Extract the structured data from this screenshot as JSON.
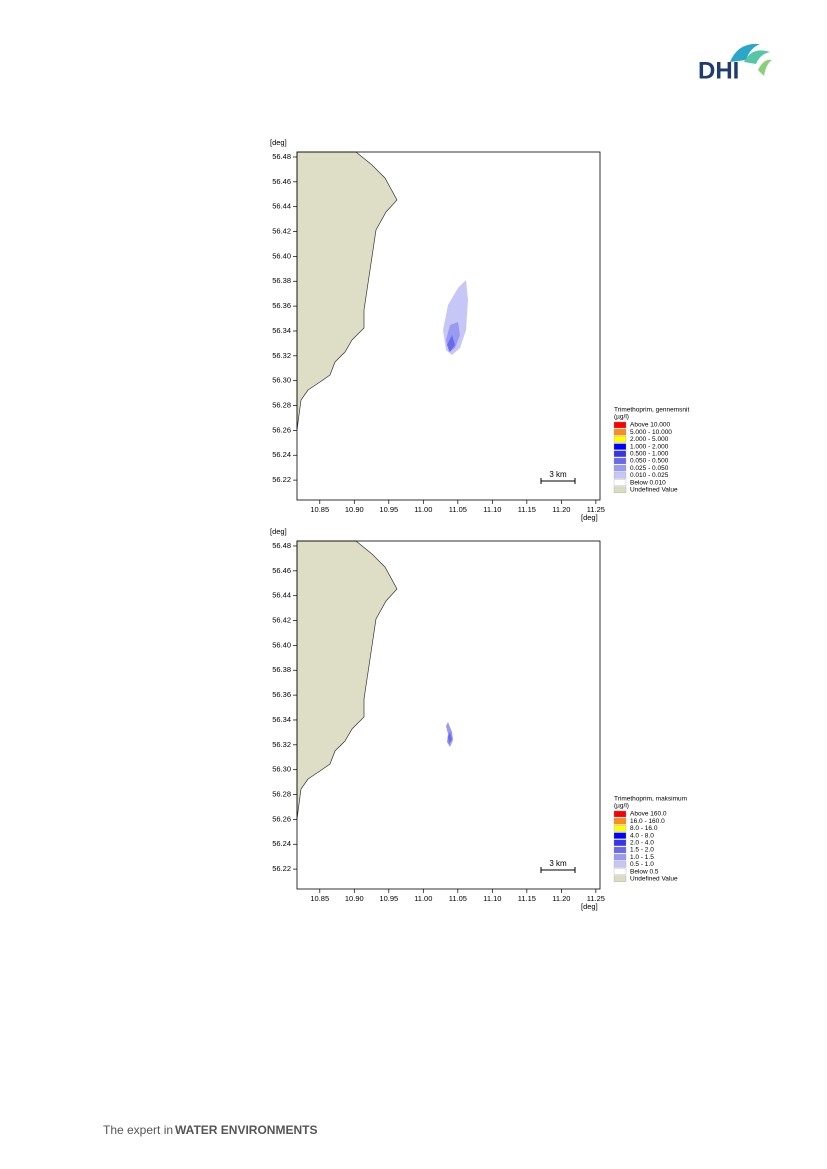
{
  "header": {
    "logo": "DHI"
  },
  "maps": [
    {
      "yaxis_unit": "[deg]",
      "xaxis_unit": "[deg]",
      "xlim": [
        10.817,
        11.256
      ],
      "ylim": [
        56.204,
        56.484
      ],
      "xticks": [
        10.85,
        {
          "value": 10.9,
          "label": "10.90"
        },
        10.95,
        {
          "value": 11,
          "label": "11.00"
        },
        11.05,
        {
          "value": 11.1,
          "label": "11.10"
        },
        11.15,
        {
          "value": 11.2,
          "label": "11.20"
        },
        11.25
      ],
      "yticks": [
        56.48,
        56.46,
        56.44,
        56.42,
        {
          "value": 56.4,
          "label": "56.40"
        },
        56.38,
        56.36,
        56.34,
        56.32,
        {
          "value": 56.3,
          "label": "56.30"
        },
        56.28,
        56.26,
        56.24,
        56.22
      ],
      "scale_bar": "3 km",
      "legend": {
        "title": "Trimethoprim, gennemsnit",
        "unit": "(µg/l)",
        "items": [
          {
            "label": "Above 10.000",
            "color": "#ff0000"
          },
          {
            "label": "5.000 - 10.000",
            "color": "#ff8c1a"
          },
          {
            "label": "2.000 - 5.000",
            "color": "#ffff00"
          },
          {
            "label": "1.000 - 2.000",
            "color": "#0000ff"
          },
          {
            "label": "0.500 - 1.000",
            "color": "#3535ee"
          },
          {
            "label": "0.050 - 0.500",
            "color": "#6a6aee"
          },
          {
            "label": "0.025 - 0.050",
            "color": "#9a9af2"
          },
          {
            "label": "0.010 - 0.025",
            "color": "#c6c6f7"
          },
          {
            "label": "Below 0.010",
            "color": "#ffffff"
          },
          {
            "label": "Undefined Value",
            "color": "#dcdcc2"
          }
        ]
      }
    },
    {
      "yaxis_unit": "[deg]",
      "xaxis_unit": "[deg]",
      "xlim": [
        10.817,
        11.256
      ],
      "ylim": [
        56.204,
        56.484
      ],
      "xticks": [
        10.85,
        {
          "value": 10.9,
          "label": "10.90"
        },
        10.95,
        {
          "value": 11,
          "label": "11.00"
        },
        11.05,
        {
          "value": 11.1,
          "label": "11.10"
        },
        11.15,
        {
          "value": 11.2,
          "label": "11.20"
        },
        11.25
      ],
      "yticks": [
        56.48,
        56.46,
        56.44,
        56.42,
        {
          "value": 56.4,
          "label": "56.40"
        },
        56.38,
        56.36,
        56.34,
        56.32,
        {
          "value": 56.3,
          "label": "56.30"
        },
        56.28,
        56.26,
        56.24,
        56.22
      ],
      "scale_bar": "3 km",
      "legend": {
        "title": "Trimethoprim, maksimum",
        "unit": "(µg/l)",
        "items": [
          {
            "label": "Above 160.0",
            "color": "#ff0000"
          },
          {
            "label": "16.0 - 160.0",
            "color": "#ff8c1a"
          },
          {
            "label": "8.0 - 16.0",
            "color": "#ffff00"
          },
          {
            "label": "4.0 - 8.0",
            "color": "#0000ff"
          },
          {
            "label": "2.0 - 4.0",
            "color": "#3535ee"
          },
          {
            "label": "1.5 - 2.0",
            "color": "#6a6aee"
          },
          {
            "label": "1.0 - 1.5",
            "color": "#9a9af2"
          },
          {
            "label": "0.5 - 1.0",
            "color": "#c6c6f7"
          },
          {
            "label": "Below 0.5",
            "color": "#ffffff"
          },
          {
            "label": "Undefined Value",
            "color": "#dcdcc2"
          }
        ]
      }
    }
  ],
  "footer": {
    "tagline": "The expert in",
    "brand": "WATER ENVIRONMENTS"
  }
}
